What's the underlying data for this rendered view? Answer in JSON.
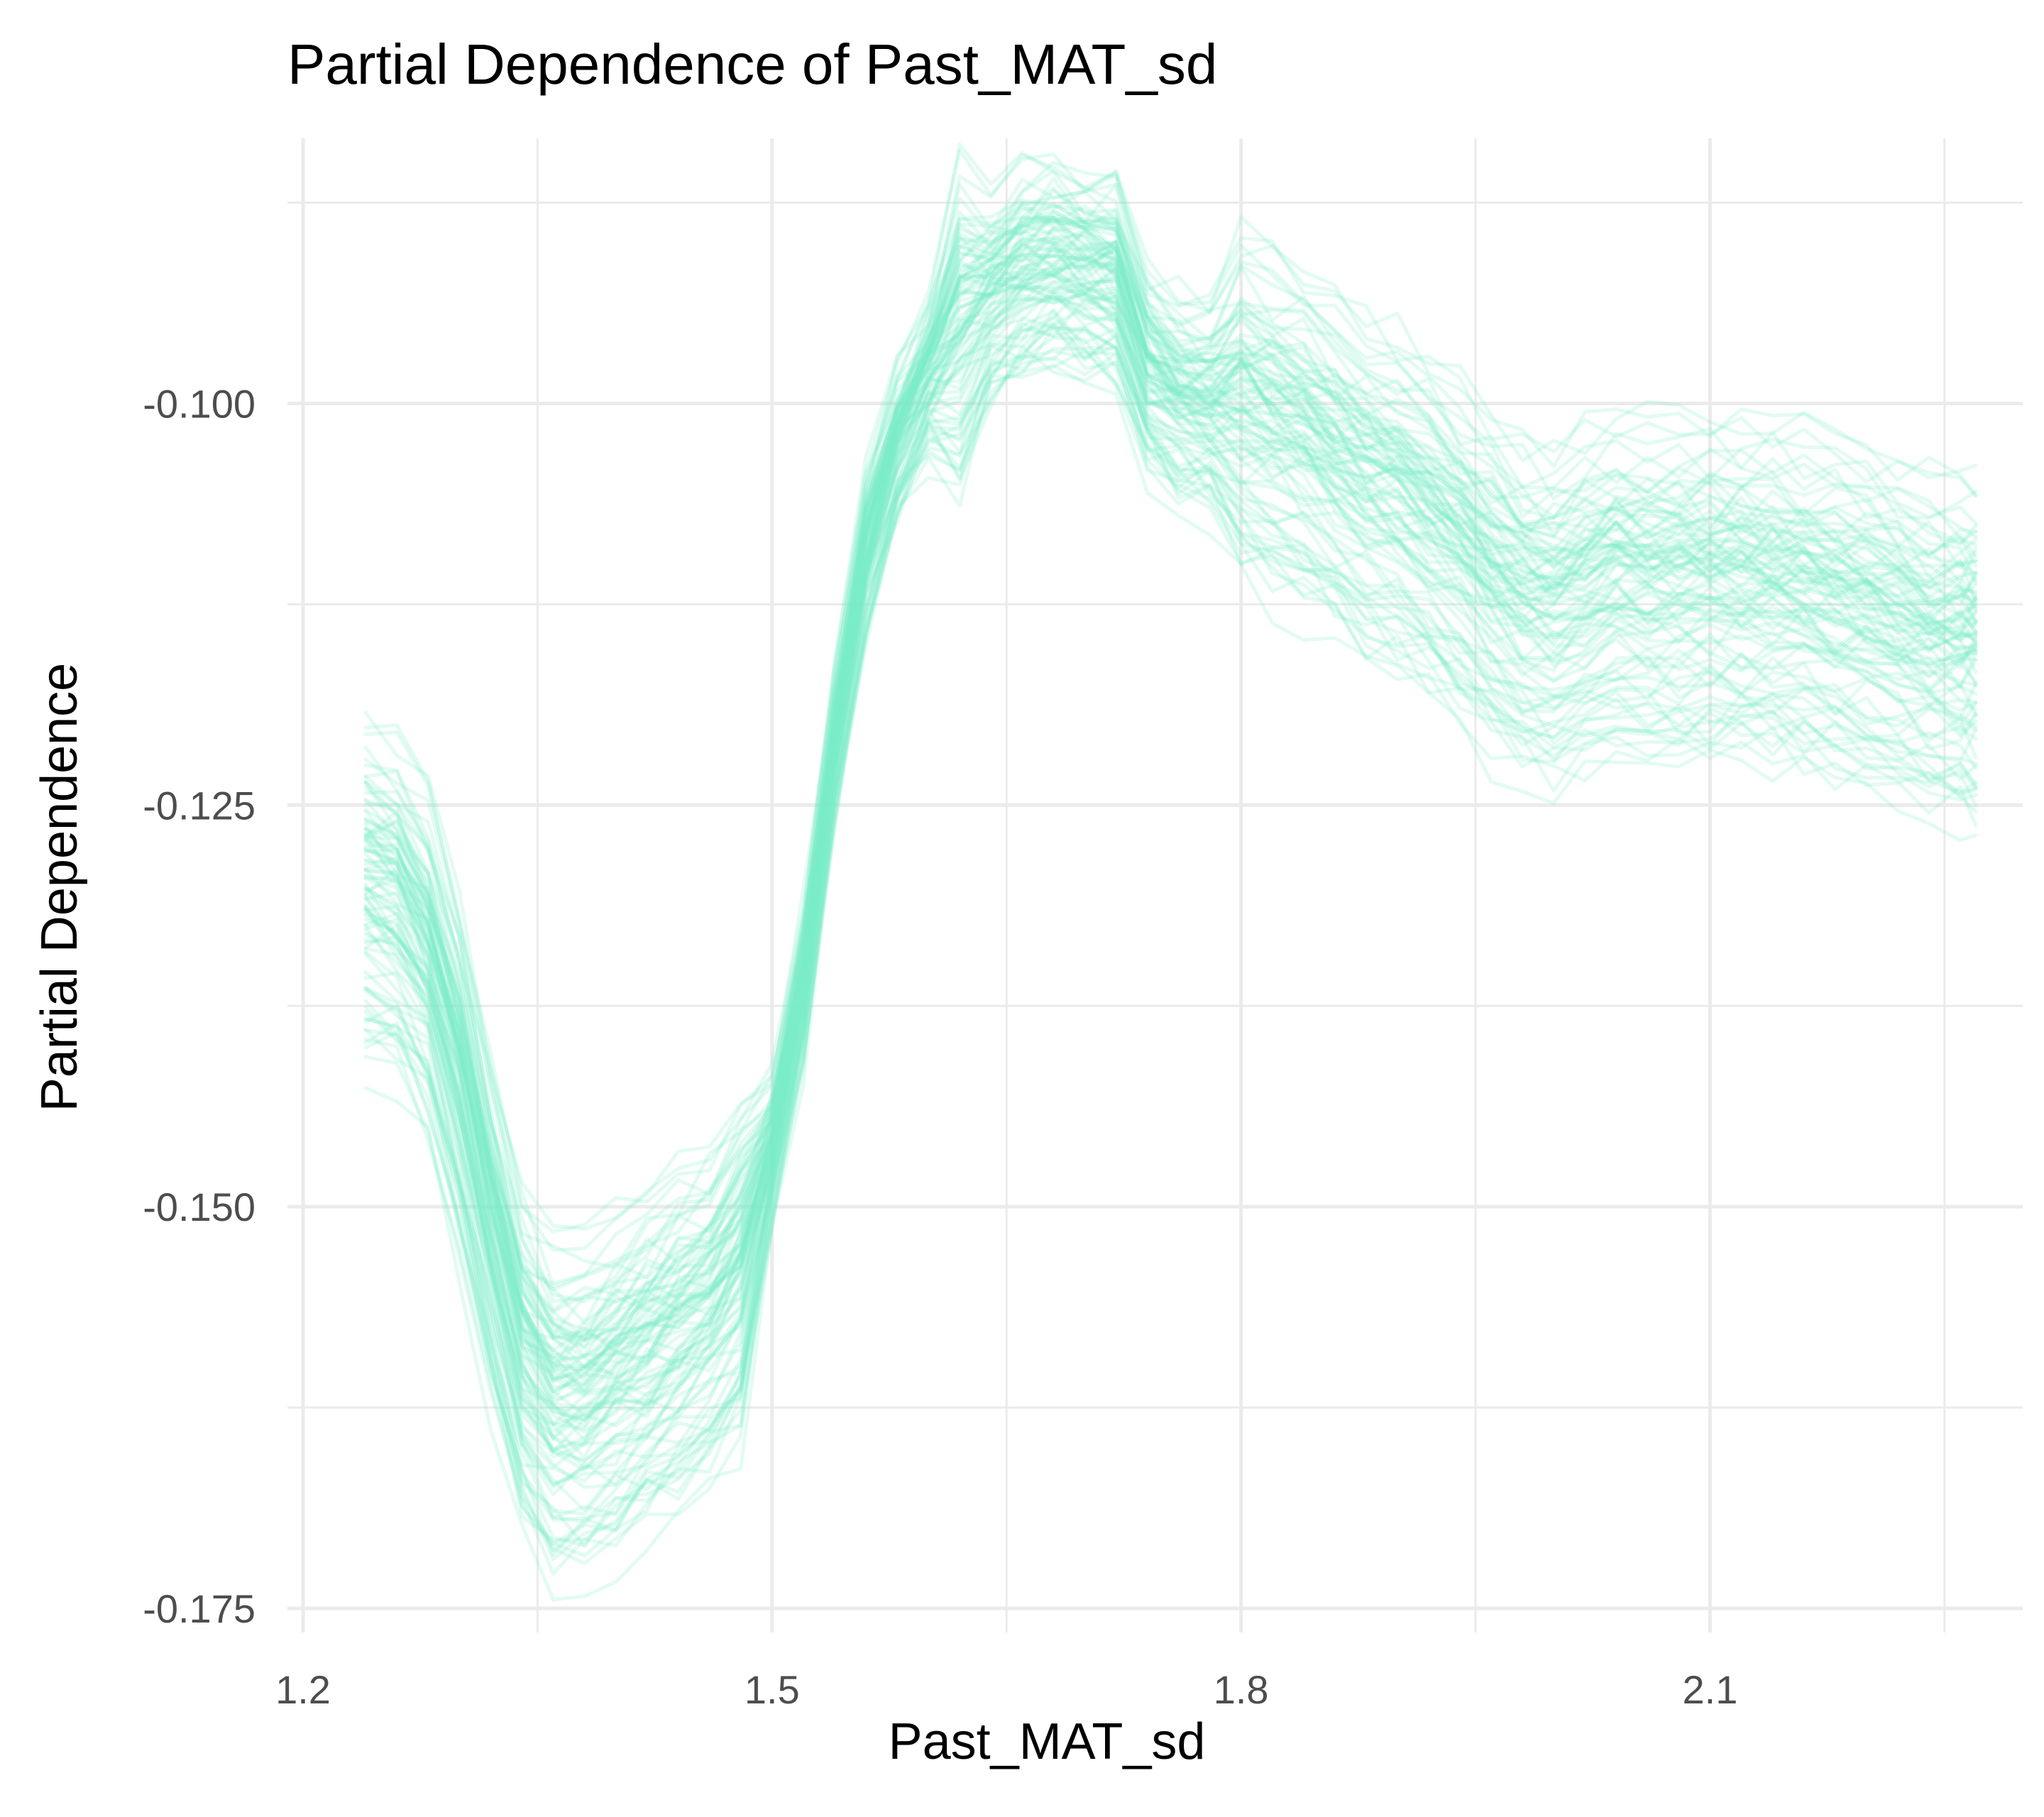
{
  "chart_data": {
    "type": "line",
    "title": "Partial Dependence of Past_MAT_sd",
    "xlabel": "Past_MAT_sd",
    "ylabel": "Partial Dependence",
    "xlim": [
      1.19,
      2.3
    ],
    "ylim": [
      -0.1765,
      -0.0835
    ],
    "x_ticks": [
      1.2,
      1.5,
      1.8,
      2.1
    ],
    "x_tick_labels": [
      "1.2",
      "1.5",
      "1.8",
      "2.1"
    ],
    "y_ticks": [
      -0.175,
      -0.15,
      -0.125,
      -0.1
    ],
    "y_tick_labels": [
      "-0.175",
      "-0.150",
      "-0.125",
      "-0.100"
    ],
    "grid": true,
    "legend": "none",
    "line_color": "#79EEC8",
    "line_opacity": 0.22,
    "n_series": 100,
    "x": [
      1.24,
      1.26,
      1.28,
      1.3,
      1.32,
      1.34,
      1.36,
      1.38,
      1.4,
      1.42,
      1.44,
      1.46,
      1.48,
      1.5,
      1.52,
      1.54,
      1.56,
      1.58,
      1.6,
      1.62,
      1.64,
      1.66,
      1.68,
      1.7,
      1.72,
      1.74,
      1.76,
      1.78,
      1.8,
      1.82,
      1.84,
      1.86,
      1.88,
      1.9,
      1.92,
      1.94,
      1.96,
      1.98,
      2.0,
      2.02,
      2.04,
      2.06,
      2.08,
      2.1,
      2.12,
      2.14,
      2.16,
      2.18,
      2.2,
      2.22,
      2.24,
      2.26,
      2.27
    ],
    "center_curve": [
      -0.1305,
      -0.1315,
      -0.135,
      -0.1425,
      -0.1515,
      -0.1595,
      -0.1625,
      -0.1625,
      -0.1612,
      -0.1598,
      -0.1585,
      -0.1568,
      -0.154,
      -0.1465,
      -0.1365,
      -0.1215,
      -0.1095,
      -0.1025,
      -0.0985,
      -0.0955,
      -0.0935,
      -0.092,
      -0.0915,
      -0.092,
      -0.0925,
      -0.098,
      -0.1,
      -0.1005,
      -0.1005,
      -0.1015,
      -0.1025,
      -0.104,
      -0.1055,
      -0.1065,
      -0.108,
      -0.1095,
      -0.1115,
      -0.113,
      -0.1135,
      -0.1125,
      -0.112,
      -0.112,
      -0.112,
      -0.112,
      -0.112,
      -0.1122,
      -0.1125,
      -0.113,
      -0.1138,
      -0.1145,
      -0.1152,
      -0.1155,
      -0.1155
    ],
    "series_offset_range": [
      -0.0085,
      0.0085
    ]
  }
}
